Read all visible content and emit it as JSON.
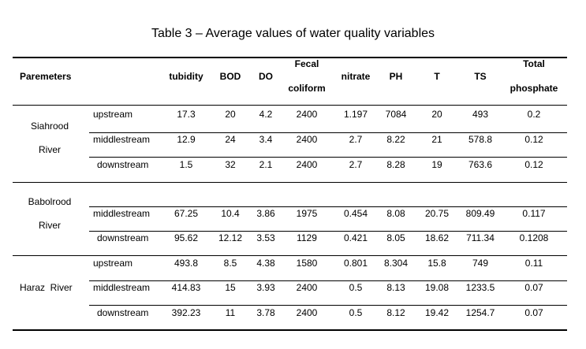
{
  "caption": "Table 3 – Average values of water quality variables",
  "headers": {
    "param": "Paremeters",
    "tubidity": "tubidity",
    "bod": "BOD",
    "do": "DO",
    "fecal_1": "Fecal",
    "fecal_2": "coliform",
    "nitrate": "nitrate",
    "ph": "PH",
    "t": "T",
    "ts": "TS",
    "tp_1": "Total",
    "tp_2": "phosphate"
  },
  "rivers": [
    {
      "name_1": "Siahrood",
      "name_2": "River",
      "rows": [
        {
          "loc": "upstream",
          "tubidity": "17.3",
          "bod": "20",
          "do": "4.2",
          "fecal": "2400",
          "nitrate": "1.197",
          "ph": "7084",
          "t": "20",
          "ts": "493",
          "tp": "0.2"
        },
        {
          "loc": "middlestream",
          "tubidity": "12.9",
          "bod": "24",
          "do": "3.4",
          "fecal": "2400",
          "nitrate": "2.7",
          "ph": "8.22",
          "t": "21",
          "ts": "578.8",
          "tp": "0.12"
        },
        {
          "loc": "downstream",
          "tubidity": "1.5",
          "bod": "32",
          "do": "2.1",
          "fecal": "2400",
          "nitrate": "2.7",
          "ph": "8.28",
          "t": "19",
          "ts": "763.6",
          "tp": "0.12"
        }
      ]
    },
    {
      "name_1": "Babolrood",
      "name_2": "River",
      "rows": [
        {
          "loc": "middlestream",
          "tubidity": "67.25",
          "bod": "10.4",
          "do": "3.86",
          "fecal": "1975",
          "nitrate": "0.454",
          "ph": "8.08",
          "t": "20.75",
          "ts": "809.49",
          "tp": "0.117"
        },
        {
          "loc": "downstream",
          "tubidity": "95.62",
          "bod": "12.12",
          "do": "3.53",
          "fecal": "1129",
          "nitrate": "0.421",
          "ph": "8.05",
          "t": "18.62",
          "ts": "711.34",
          "tp": "0.1208"
        }
      ]
    },
    {
      "name": "Haraz  River",
      "rows": [
        {
          "loc": "upstream",
          "tubidity": "493.8",
          "bod": "8.5",
          "do": "4.38",
          "fecal": "1580",
          "nitrate": "0.801",
          "ph": "8.304",
          "t": "15.8",
          "ts": "749",
          "tp": "0.11"
        },
        {
          "loc": "middlestream",
          "tubidity": "414.83",
          "bod": "15",
          "do": "3.93",
          "fecal": "2400",
          "nitrate": "0.5",
          "ph": "8.13",
          "t": "19.08",
          "ts": "1233.5",
          "tp": "0.07"
        },
        {
          "loc": "downstream",
          "tubidity": "392.23",
          "bod": "11",
          "do": "3.78",
          "fecal": "2400",
          "nitrate": "0.5",
          "ph": "8.12",
          "t": "19.42",
          "ts": "1254.7",
          "tp": "0.07"
        }
      ]
    }
  ]
}
